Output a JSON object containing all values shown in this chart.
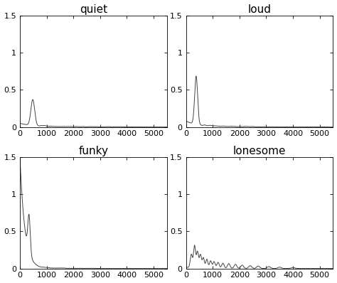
{
  "titles": [
    "quiet",
    "loud",
    "funky",
    "lonesome"
  ],
  "xlim": [
    0,
    5500
  ],
  "ylim": [
    0,
    1.5
  ],
  "xticks": [
    0,
    1000,
    2000,
    3000,
    4000,
    5000
  ],
  "yticks": [
    0,
    0.5,
    1,
    1.5
  ],
  "figsize": [
    4.74,
    3.98
  ],
  "dpi": 100,
  "line_color": "#444444",
  "line_width": 0.7,
  "background_color": "#ffffff",
  "title_fontsize": 11,
  "tick_fontsize": 8
}
